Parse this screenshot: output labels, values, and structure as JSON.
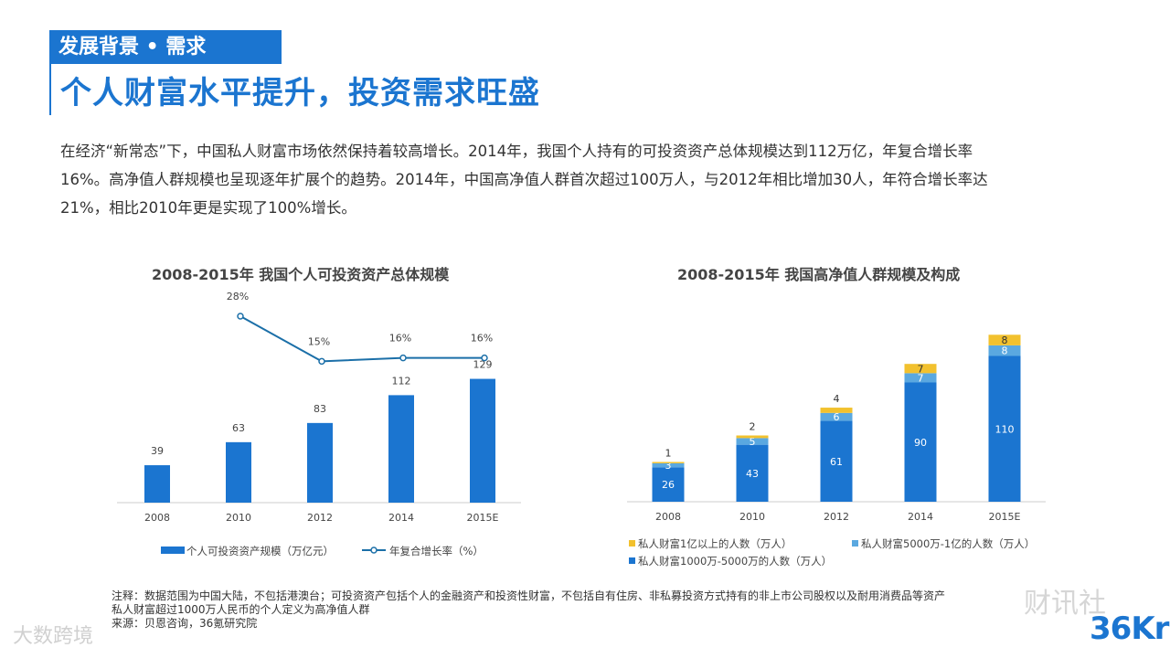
{
  "header": {
    "tag": "发展背景 • 需求",
    "title": "个人财富水平提升，投资需求旺盛"
  },
  "intro": {
    "line1": "在经济“新常态”下，中国私人财富市场依然保持着较高增长。2014年，我国个人持有的可投资资产总体规模达到112万亿，年复合增长率",
    "line2": "16%。高净值人群规模也呈现逐年扩展个的趋势。2014年，中国高净值人群首次超过100万人，与2012年相比增加30人，年符合增长率达",
    "line3": "21%，相比2010年更是实现了100%增长。"
  },
  "chart_data": [
    {
      "type": "bar",
      "title": "2008-2015年 我国个人可投资资产总体规模",
      "categories": [
        "2008",
        "2010",
        "2012",
        "2014",
        "2015E"
      ],
      "series": [
        {
          "name": "个人可投资资产规模（万亿元）",
          "type": "bar",
          "values": [
            39,
            63,
            83,
            112,
            129
          ],
          "color": "#1b75d0"
        },
        {
          "name": "年复合增长率（%）",
          "type": "line",
          "values": [
            null,
            28,
            15,
            16,
            16
          ],
          "labels": [
            "",
            "28%",
            "15%",
            "16%",
            "16%"
          ],
          "color": "#1b6fa8"
        }
      ],
      "legend": "bottom"
    },
    {
      "type": "bar",
      "stacked": true,
      "title": "2008-2015年 我国高净值人群规模及构成",
      "categories": [
        "2008",
        "2010",
        "2012",
        "2014",
        "2015E"
      ],
      "series": [
        {
          "name": "私人财富1000万-5000万的人数（万人）",
          "values": [
            26,
            43,
            61,
            90,
            110
          ],
          "color": "#1b75d0"
        },
        {
          "name": "私人财富5000万-1亿的人数（万人）",
          "values": [
            3,
            5,
            6,
            7,
            8
          ],
          "color": "#5aa8e0"
        },
        {
          "name": "私人财富1亿以上的人数（万人）",
          "values": [
            1,
            2,
            4,
            7,
            8
          ],
          "color": "#f2c12e"
        }
      ],
      "legend": "bottom"
    }
  ],
  "notes": {
    "line1": "注释：数据范围为中国大陆，不包括港澳台；可投资资产包括个人的金融资产和投资性财富，不包括自有住房、非私募投资方式持有的非上市公司股权以及耐用消费品等资产",
    "line2": "私人财富超过1000万人民币的个人定义为高净值人群",
    "line3": "来源：贝恩咨询，36氪研究院"
  },
  "logo": "36Kr",
  "watermarks": {
    "top_right": "财讯社",
    "bottom_left": "大数跨境"
  }
}
